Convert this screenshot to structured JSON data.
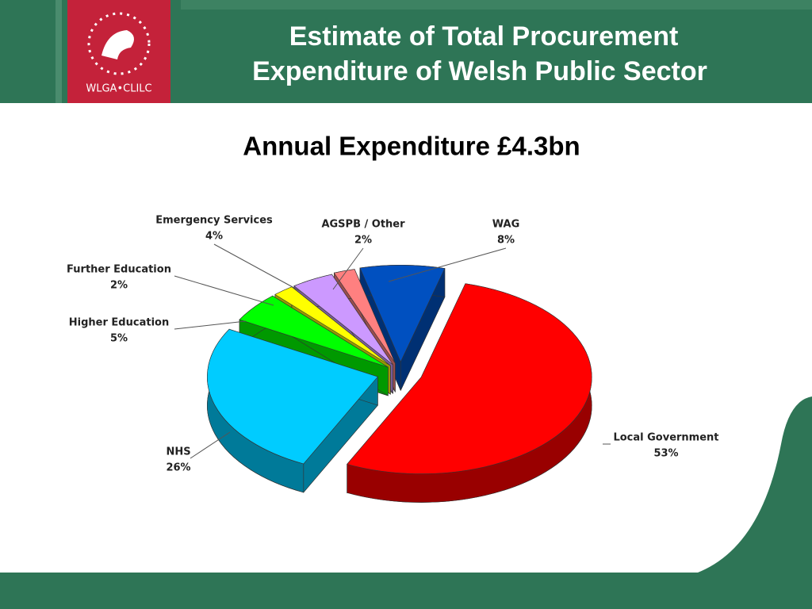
{
  "header": {
    "logo_text": "WLGA•CLILC",
    "title_lines": [
      "Estimate of Total Procurement",
      "Expenditure of Welsh Public Sector"
    ]
  },
  "chart_data": {
    "type": "pie",
    "title": "Annual Expenditure £4.3bn",
    "categories": [
      "Local Government",
      "NHS",
      "Higher Education",
      "Further Education",
      "Emergency Services",
      "AGSPB / Other",
      "WAG"
    ],
    "values": [
      53,
      26,
      5,
      2,
      4,
      2,
      8
    ],
    "value_labels": [
      "53%",
      "26%",
      "5%",
      "2%",
      "4%",
      "2%",
      "8%"
    ],
    "colors": [
      "#ff0000",
      "#00ccff",
      "#00ff00",
      "#ffff00",
      "#cc99ff",
      "#ff8080",
      "#0050c0"
    ]
  }
}
